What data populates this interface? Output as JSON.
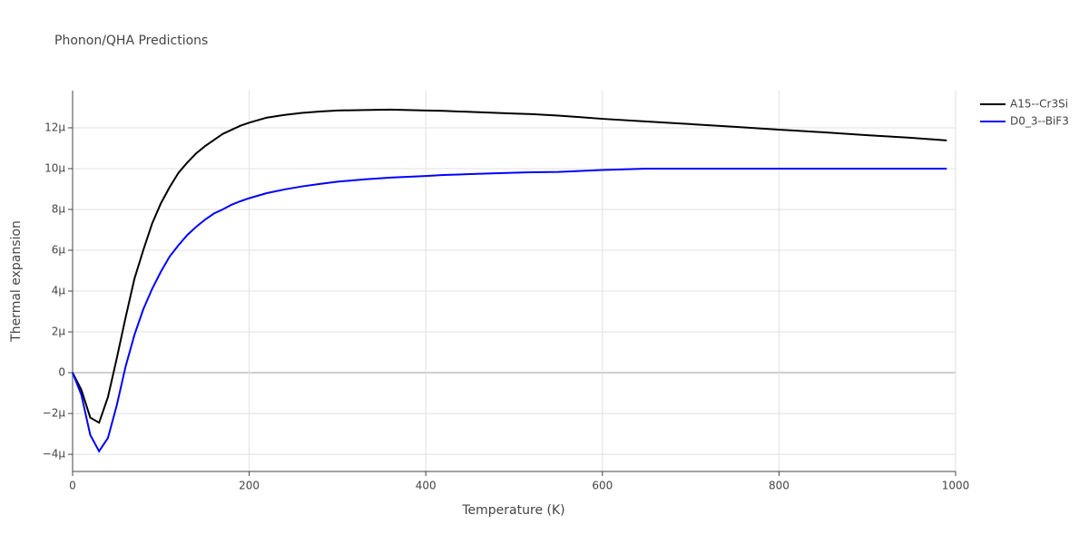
{
  "chart_data": {
    "type": "line",
    "title": "Phonon/QHA Predictions",
    "x_label": "Temperature (K)",
    "y_label": "Thermal expansion",
    "x": [
      0,
      10,
      20,
      30,
      40,
      50,
      60,
      70,
      80,
      90,
      100,
      110,
      120,
      130,
      140,
      150,
      160,
      170,
      180,
      190,
      200,
      220,
      240,
      260,
      280,
      300,
      330,
      360,
      400,
      420,
      450,
      500,
      520,
      550,
      600,
      650,
      700,
      750,
      800,
      850,
      900,
      950,
      990
    ],
    "series": [
      {
        "name": "A15--Cr3Si",
        "color": "#000000",
        "values": [
          0,
          -8.5e-07,
          -2.2e-06,
          -2.45e-06,
          -1.2e-06,
          7e-07,
          2.7e-06,
          4.6e-06,
          6e-06,
          7.3e-06,
          8.3e-06,
          9.1e-06,
          9.8e-06,
          1.03e-05,
          1.075e-05,
          1.11e-05,
          1.14e-05,
          1.17e-05,
          1.19e-05,
          1.21e-05,
          1.225e-05,
          1.25e-05,
          1.263e-05,
          1.273e-05,
          1.28e-05,
          1.285e-05,
          1.287e-05,
          1.289e-05,
          1.285e-05,
          1.283e-05,
          1.278e-05,
          1.27e-05,
          1.267e-05,
          1.26e-05,
          1.244e-05,
          1.231e-05,
          1.218e-05,
          1.205e-05,
          1.191e-05,
          1.178e-05,
          1.164e-05,
          1.151e-05,
          1.138e-05
        ]
      },
      {
        "name": "D0_3--BiF3",
        "color": "#0000ff",
        "values": [
          0,
          -1.1e-06,
          -3.05e-06,
          -3.85e-06,
          -3.2e-06,
          -1.6e-06,
          3e-07,
          1.85e-06,
          3.1e-06,
          4.1e-06,
          4.95e-06,
          5.7e-06,
          6.25e-06,
          6.75e-06,
          7.15e-06,
          7.5e-06,
          7.8e-06,
          8e-06,
          8.23e-06,
          8.4e-06,
          8.55e-06,
          8.8e-06,
          8.98e-06,
          9.13e-06,
          9.25e-06,
          9.36e-06,
          9.47e-06,
          9.56e-06,
          9.64e-06,
          9.69e-06,
          9.73e-06,
          9.8e-06,
          9.82e-06,
          9.84e-06,
          9.93e-06,
          1e-05,
          1e-05,
          1e-05,
          1e-05,
          1e-05,
          1e-05,
          1e-05,
          1e-05
        ]
      }
    ],
    "xlim": [
      0,
      1000
    ],
    "xticks": [
      0,
      200,
      400,
      600,
      800,
      1000
    ],
    "ylim": [
      -4.84e-06,
      1.382e-05
    ],
    "yticks": [
      {
        "value": -4e-06,
        "label": "−4μ"
      },
      {
        "value": -2e-06,
        "label": "−2μ"
      },
      0,
      {
        "value": 2e-06,
        "label": "2μ"
      },
      {
        "value": 4e-06,
        "label": "4μ"
      },
      {
        "value": 6e-06,
        "label": "6μ"
      },
      {
        "value": 8e-06,
        "label": "8μ"
      },
      {
        "value": 1e-05,
        "label": "10μ"
      },
      {
        "value": 1.2e-05,
        "label": "12μ"
      }
    ],
    "grid": true,
    "legend": "top-right"
  }
}
